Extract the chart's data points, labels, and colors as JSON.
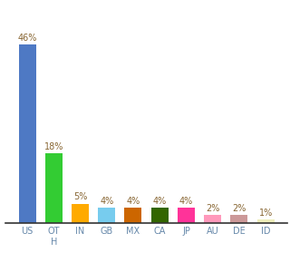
{
  "categories": [
    "US",
    "OT\nH",
    "IN",
    "GB",
    "MX",
    "CA",
    "JP",
    "AU",
    "DE",
    "ID"
  ],
  "values": [
    46,
    18,
    5,
    4,
    4,
    4,
    4,
    2,
    2,
    1
  ],
  "bar_colors": [
    "#4e79c4",
    "#33cc33",
    "#ffaa00",
    "#77ccee",
    "#cc6600",
    "#336600",
    "#ff3399",
    "#ff99bb",
    "#cc9999",
    "#eeeebb"
  ],
  "value_labels": [
    "46%",
    "18%",
    "5%",
    "4%",
    "4%",
    "4%",
    "4%",
    "2%",
    "2%",
    "1%"
  ],
  "label_color": "#886633",
  "tick_color": "#6688aa",
  "background_color": "#ffffff",
  "ylim": [
    0,
    54
  ],
  "bar_width": 0.65
}
